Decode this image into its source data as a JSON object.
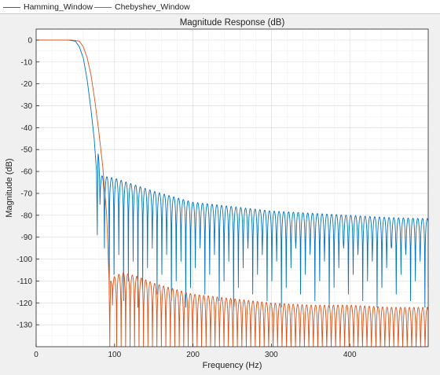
{
  "legend": {
    "items": [
      {
        "label": "Hamming_Window",
        "color": "#0072BD"
      },
      {
        "label": "Chebyshev_Window",
        "color": "#D95319"
      }
    ]
  },
  "chart_data": {
    "type": "line",
    "title": "Magnitude Response (dB)",
    "xlabel": "Frequency (Hz)",
    "ylabel": "Magnitude (dB)",
    "xlim": [
      0,
      500
    ],
    "ylim": [
      -140,
      5
    ],
    "xticks": [
      0,
      100,
      200,
      300,
      400
    ],
    "yticks": [
      0,
      -10,
      -20,
      -30,
      -40,
      -50,
      -60,
      -70,
      -80,
      -90,
      -100,
      -110,
      -120,
      -130
    ],
    "grid": true,
    "legend_position": "top-left (above plot)",
    "series": [
      {
        "name": "Hamming_Window",
        "color": "#0072BD",
        "passband_edge_hz": 55,
        "transition_points": [
          [
            0,
            0
          ],
          [
            40,
            0
          ],
          [
            50,
            -0.5
          ],
          [
            55,
            -3
          ],
          [
            60,
            -8
          ],
          [
            65,
            -18
          ],
          [
            70,
            -32
          ],
          [
            74,
            -45
          ],
          [
            77,
            -60
          ],
          [
            78,
            -89
          ]
        ],
        "first_sidelobe": {
          "start_hz": 78,
          "peak_hz": 79,
          "peak_db": -52,
          "null_hz": 81,
          "null_db": -66
        },
        "lobe_width_hz": 6.1,
        "sidelobe_peaks_db": [
          [
            84,
            -62
          ],
          [
            100,
            -63
          ],
          [
            150,
            -69
          ],
          [
            200,
            -74
          ],
          [
            250,
            -76
          ],
          [
            300,
            -78
          ],
          [
            350,
            -79
          ],
          [
            400,
            -80
          ],
          [
            450,
            -81
          ],
          [
            500,
            -81.5
          ]
        ],
        "null_depth_db": [
          -95,
          -125
        ]
      },
      {
        "name": "Chebyshev_Window",
        "color": "#D95319",
        "passband_edge_hz": 60,
        "transition_points": [
          [
            0,
            0
          ],
          [
            45,
            0
          ],
          [
            55,
            -0.5
          ],
          [
            60,
            -3
          ],
          [
            65,
            -8
          ],
          [
            70,
            -16
          ],
          [
            75,
            -28
          ],
          [
            80,
            -42
          ],
          [
            85,
            -58
          ],
          [
            90,
            -80
          ],
          [
            93,
            -110
          ],
          [
            94,
            -140
          ]
        ],
        "first_sidelobe": {
          "start_hz": 94,
          "peak_hz": 95,
          "peak_db": -110,
          "null_hz": 97,
          "null_db": -113
        },
        "lobe_width_hz": 5.7,
        "sidelobe_peaks_db": [
          [
            100,
            -108
          ],
          [
            110,
            -106
          ],
          [
            130,
            -108
          ],
          [
            150,
            -111
          ],
          [
            200,
            -116
          ],
          [
            250,
            -118
          ],
          [
            300,
            -120
          ],
          [
            350,
            -121
          ],
          [
            400,
            -121
          ],
          [
            450,
            -122
          ],
          [
            500,
            -122
          ]
        ],
        "null_depth_db": [
          -140,
          -140
        ]
      }
    ]
  }
}
